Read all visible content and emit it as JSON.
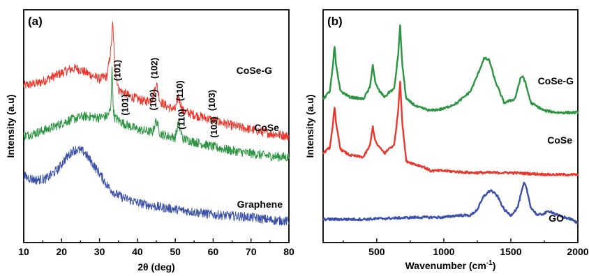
{
  "chart_data": [
    {
      "panel": "(a)",
      "type": "line",
      "xlabel": "2θ (deg)",
      "ylabel": "Intensity (a.u)",
      "xlim": [
        10,
        80
      ],
      "xticks": [
        "10",
        "20",
        "30",
        "40",
        "50",
        "60",
        "70",
        "80"
      ],
      "yticks": [],
      "grid": false,
      "series": [
        {
          "name": "CoSe-G",
          "color": "#e8372c",
          "x": [
            10,
            14,
            18,
            22,
            24,
            27,
            30,
            32,
            33,
            33.5,
            34,
            35,
            38,
            42,
            44,
            45,
            46,
            48,
            50,
            50.8,
            52,
            55,
            60,
            65,
            70,
            75,
            80
          ],
          "values": [
            0.88,
            0.9,
            0.95,
            1.0,
            1.01,
            0.97,
            0.93,
            0.95,
            1.15,
            1.35,
            1.05,
            0.85,
            0.8,
            0.76,
            0.78,
            0.9,
            0.76,
            0.72,
            0.7,
            0.8,
            0.69,
            0.66,
            0.62,
            0.58,
            0.55,
            0.52,
            0.5
          ],
          "peak_labels": [
            {
              "text": "(101)",
              "x": 35.5
            },
            {
              "text": "(102)",
              "x": 45.3
            },
            {
              "text": "(110)",
              "x": 52.0
            },
            {
              "text": "(103)",
              "x": 60.5
            }
          ]
        },
        {
          "name": "CoSe",
          "color": "#2a9440",
          "x": [
            10,
            14,
            18,
            22,
            26,
            30,
            32,
            33,
            33.3,
            33.6,
            34,
            36,
            40,
            44,
            45,
            46,
            48,
            50,
            50.8,
            52,
            56,
            60,
            65,
            70,
            75,
            80
          ],
          "values": [
            0.5,
            0.53,
            0.57,
            0.62,
            0.65,
            0.64,
            0.65,
            0.7,
            1.05,
            0.72,
            0.64,
            0.6,
            0.55,
            0.53,
            0.62,
            0.52,
            0.5,
            0.49,
            0.6,
            0.48,
            0.45,
            0.42,
            0.39,
            0.37,
            0.35,
            0.34
          ],
          "peak_labels": [
            {
              "text": "(101)",
              "x": 37.5
            },
            {
              "text": "(102)",
              "x": 45.0
            },
            {
              "text": "(110)",
              "x": 52.5
            },
            {
              "text": "(103)",
              "x": 61.0
            }
          ]
        },
        {
          "name": "Graphene",
          "color": "#3a4fa8",
          "x": [
            10,
            13,
            16,
            19,
            21,
            23,
            24,
            26,
            28,
            30,
            32,
            34,
            36,
            40,
            45,
            50,
            55,
            60,
            65,
            70,
            75,
            80
          ],
          "values": [
            0.2,
            0.17,
            0.18,
            0.25,
            0.33,
            0.39,
            0.4,
            0.38,
            0.3,
            0.22,
            0.13,
            0.07,
            0.04,
            0.0,
            -0.03,
            -0.05,
            -0.07,
            -0.09,
            -0.1,
            -0.11,
            -0.13,
            -0.14
          ],
          "peak_labels": []
        }
      ]
    },
    {
      "panel": "(b)",
      "type": "line",
      "xlabel": "Wavenumber (cm",
      "xlabel_superscript": "-1",
      "xlabel_suffix": ")",
      "ylabel": "Intensity (a.u)",
      "xlim": [
        100,
        2000
      ],
      "xticks": [
        "500",
        "1000",
        "1500",
        "2000"
      ],
      "yticks": [],
      "grid": false,
      "series": [
        {
          "name": "CoSe-G",
          "color": "#2a9440",
          "x": [
            100,
            150,
            175,
            185,
            195,
            230,
            300,
            400,
            450,
            470,
            490,
            520,
            560,
            600,
            630,
            660,
            675,
            690,
            720,
            800,
            900,
            1000,
            1100,
            1200,
            1250,
            1300,
            1340,
            1380,
            1450,
            1530,
            1570,
            1590,
            1610,
            1650,
            1750,
            1850,
            2000
          ],
          "values": [
            0.62,
            0.66,
            0.8,
            0.9,
            0.8,
            0.66,
            0.63,
            0.62,
            0.68,
            0.8,
            0.7,
            0.66,
            0.63,
            0.66,
            0.67,
            0.85,
            1.0,
            0.8,
            0.62,
            0.58,
            0.56,
            0.57,
            0.6,
            0.66,
            0.74,
            0.83,
            0.82,
            0.72,
            0.6,
            0.62,
            0.72,
            0.74,
            0.7,
            0.6,
            0.56,
            0.55,
            0.55
          ]
        },
        {
          "name": "CoSe",
          "color": "#e8372c",
          "x": [
            100,
            150,
            175,
            185,
            195,
            230,
            300,
            400,
            450,
            470,
            490,
            520,
            560,
            600,
            630,
            660,
            675,
            690,
            720,
            800,
            850,
            900,
            1000,
            1200,
            1500,
            1800,
            2000
          ],
          "values": [
            0.34,
            0.37,
            0.5,
            0.58,
            0.5,
            0.36,
            0.33,
            0.32,
            0.38,
            0.48,
            0.4,
            0.37,
            0.34,
            0.37,
            0.38,
            0.56,
            0.72,
            0.5,
            0.3,
            0.28,
            0.27,
            0.25,
            0.25,
            0.24,
            0.24,
            0.23,
            0.23
          ]
        },
        {
          "name": "GO",
          "color": "#3a4fa8",
          "x": [
            100,
            400,
            800,
            1000,
            1100,
            1200,
            1250,
            1300,
            1350,
            1400,
            1450,
            1500,
            1550,
            1580,
            1600,
            1620,
            1650,
            1700,
            1750,
            1780,
            1800,
            1850,
            1900,
            1950,
            2000
          ],
          "values": [
            0.0,
            0.0,
            0.01,
            0.01,
            0.02,
            0.02,
            0.05,
            0.12,
            0.15,
            0.12,
            0.05,
            0.02,
            0.06,
            0.14,
            0.19,
            0.15,
            0.06,
            0.02,
            0.03,
            0.04,
            0.04,
            0.02,
            0.01,
            0.0,
            -0.02
          ]
        }
      ]
    }
  ]
}
